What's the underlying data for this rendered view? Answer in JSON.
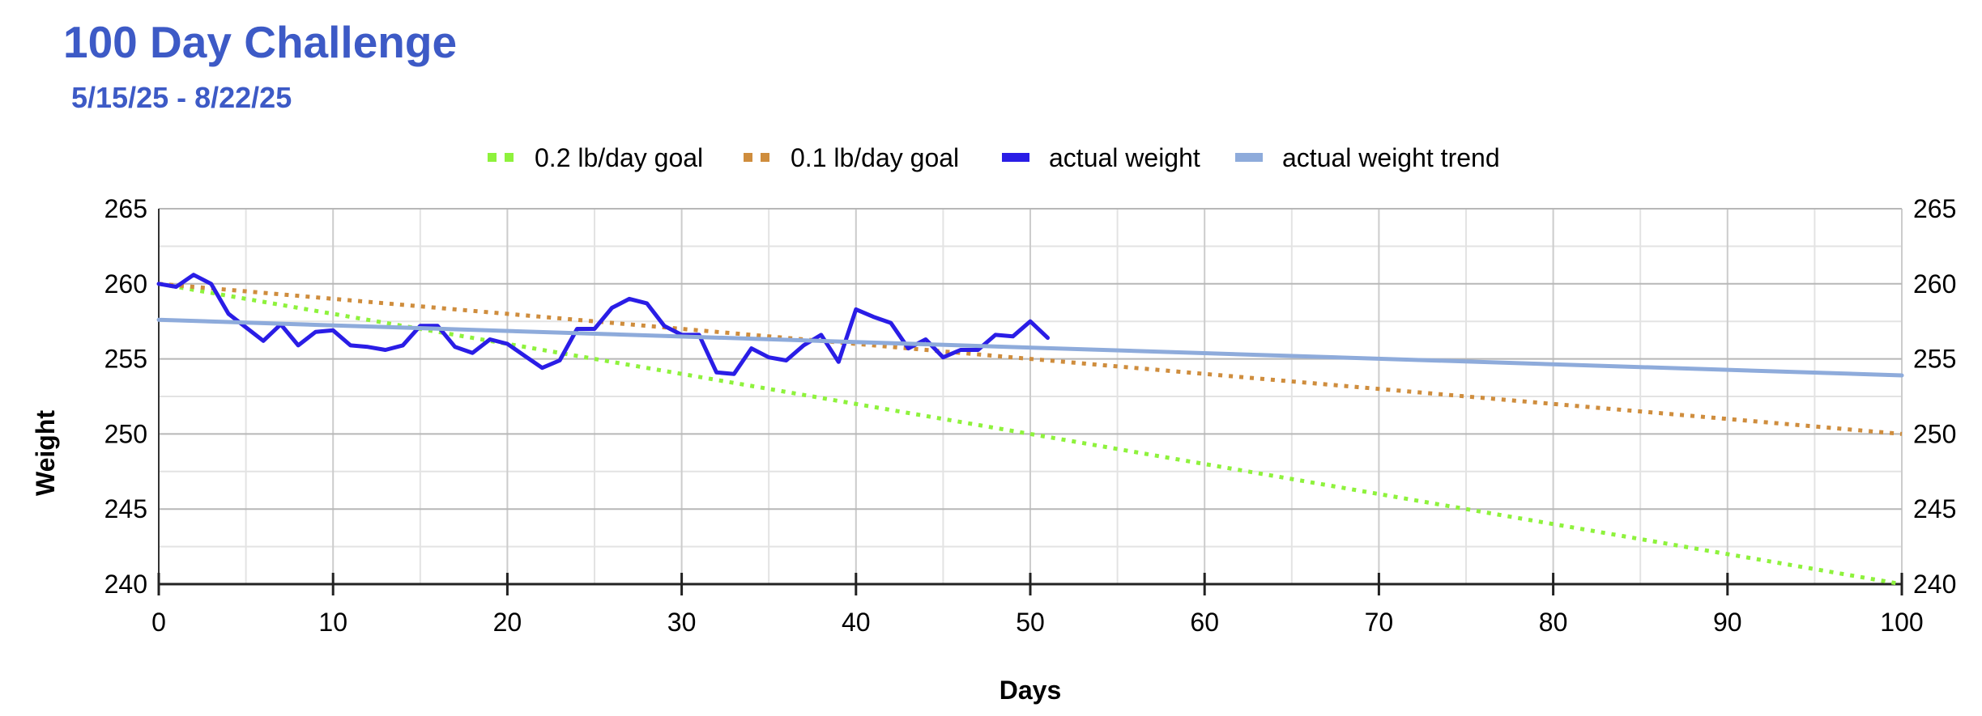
{
  "chart_data": {
    "type": "line",
    "title": "100 Day Challenge",
    "subtitle": "5/15/25 - 8/22/25",
    "xlabel": "Days",
    "ylabel": "Weight",
    "xlim": [
      0,
      100
    ],
    "ylim": [
      240,
      265
    ],
    "x_ticks": [
      0,
      10,
      20,
      30,
      40,
      50,
      60,
      70,
      80,
      90,
      100
    ],
    "y_ticks": [
      240,
      245,
      250,
      255,
      260,
      265
    ],
    "grid": true,
    "legend_position": "top",
    "series": [
      {
        "name": "0.2 lb/day goal",
        "color": "#8ef23c",
        "style": "dotted",
        "x": [
          0,
          100
        ],
        "y": [
          260,
          240
        ]
      },
      {
        "name": "0.1 lb/day goal",
        "color": "#cf8d3d",
        "style": "dotted",
        "x": [
          0,
          100
        ],
        "y": [
          260,
          250
        ]
      },
      {
        "name": "actual weight",
        "color": "#2a1de6",
        "style": "solid",
        "x": [
          0,
          1,
          2,
          3,
          4,
          5,
          6,
          7,
          8,
          9,
          10,
          11,
          12,
          13,
          14,
          15,
          16,
          17,
          18,
          19,
          20,
          21,
          22,
          23,
          24,
          25,
          26,
          27,
          28,
          29,
          30,
          31,
          32,
          33,
          34,
          35,
          36,
          37,
          38,
          39,
          40,
          41,
          42,
          43,
          44,
          45,
          46,
          47,
          48,
          49,
          50,
          51
        ],
        "y": [
          260.0,
          259.8,
          260.6,
          260.0,
          258.0,
          257.1,
          256.2,
          257.3,
          255.9,
          256.8,
          256.9,
          255.9,
          255.8,
          255.6,
          255.9,
          257.2,
          257.2,
          255.8,
          255.4,
          256.3,
          256.0,
          255.2,
          254.4,
          254.9,
          257.0,
          257.0,
          258.4,
          259.0,
          258.7,
          257.2,
          256.6,
          256.6,
          254.1,
          254.0,
          255.7,
          255.1,
          254.9,
          255.9,
          256.6,
          254.8,
          258.3,
          257.8,
          257.4,
          255.7,
          256.3,
          255.1,
          255.6,
          255.6,
          256.6,
          256.5,
          257.5,
          256.4
        ]
      },
      {
        "name": "actual weight trend",
        "color": "#8eabdb",
        "style": "solid",
        "x": [
          0,
          100
        ],
        "y": [
          257.6,
          253.9
        ]
      }
    ]
  }
}
